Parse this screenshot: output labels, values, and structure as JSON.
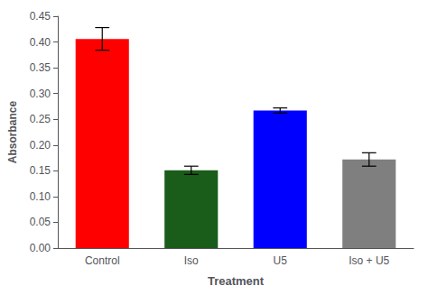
{
  "chart_data": {
    "type": "bar",
    "categories": [
      "Control",
      "Iso",
      "U5",
      "Iso + U5"
    ],
    "values": [
      0.406,
      0.151,
      0.267,
      0.172
    ],
    "errors": [
      0.022,
      0.008,
      0.005,
      0.013
    ],
    "colors": [
      "#ff0000",
      "#1a5c1a",
      "#0000ff",
      "#7f7f7f"
    ],
    "xlabel": "Treatment",
    "ylabel": "Absorbance",
    "ylim": [
      0.0,
      0.45
    ],
    "yticks": [
      {
        "value": 0,
        "label": "0.00"
      },
      0.05,
      {
        "value": 0.1,
        "label": "0.10"
      },
      0.15,
      {
        "value": 0.2,
        "label": "0.20"
      },
      0.25,
      {
        "value": 0.3,
        "label": "0.30"
      },
      0.35,
      {
        "value": 0.4,
        "label": "0.40"
      },
      0.45
    ],
    "grid": false
  }
}
